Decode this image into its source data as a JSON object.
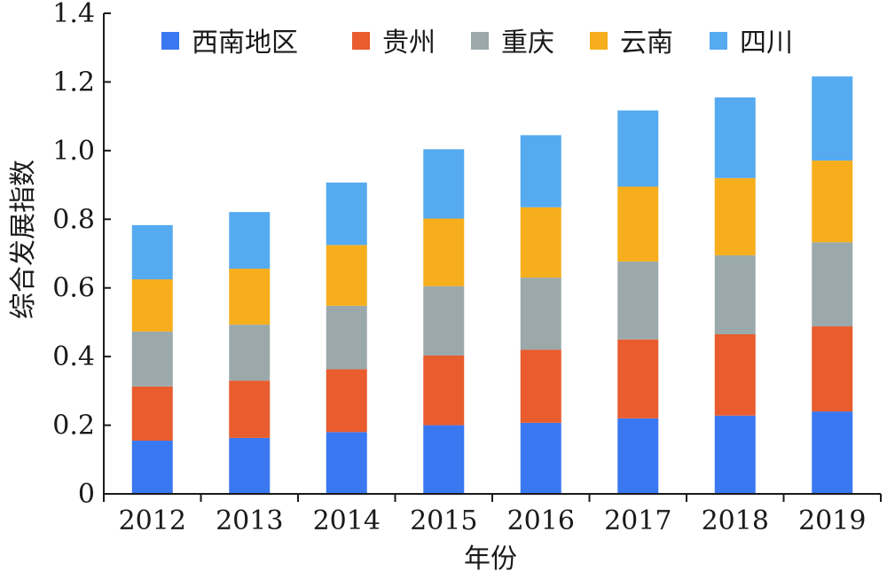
{
  "chart_data": {
    "type": "bar",
    "stacked": true,
    "xlabel": "年份",
    "ylabel": "综合发展指数",
    "ylim": [
      0,
      1.4
    ],
    "yticks": [
      "0",
      "0.2",
      "0.4",
      "0.6",
      "0.8",
      "1.0",
      "1.2",
      "1.4"
    ],
    "categories": [
      "2012",
      "2013",
      "2014",
      "2015",
      "2016",
      "2017",
      "2018",
      "2019"
    ],
    "legend_position": "top",
    "grid": false,
    "series": [
      {
        "name": "西南地区",
        "color": "#3a78f2",
        "values": [
          0.155,
          0.163,
          0.18,
          0.2,
          0.207,
          0.22,
          0.228,
          0.24
        ]
      },
      {
        "name": "贵州",
        "color": "#e85c2e",
        "values": [
          0.158,
          0.167,
          0.183,
          0.203,
          0.213,
          0.23,
          0.237,
          0.248
        ]
      },
      {
        "name": "重庆",
        "color": "#9ba9ab",
        "values": [
          0.16,
          0.163,
          0.185,
          0.202,
          0.21,
          0.227,
          0.23,
          0.245
        ]
      },
      {
        "name": "云南",
        "color": "#f7ae1c",
        "values": [
          0.152,
          0.163,
          0.177,
          0.197,
          0.205,
          0.218,
          0.225,
          0.238
        ]
      },
      {
        "name": "四川",
        "color": "#56aaf0",
        "values": [
          0.158,
          0.165,
          0.182,
          0.202,
          0.21,
          0.222,
          0.235,
          0.245
        ]
      }
    ]
  }
}
